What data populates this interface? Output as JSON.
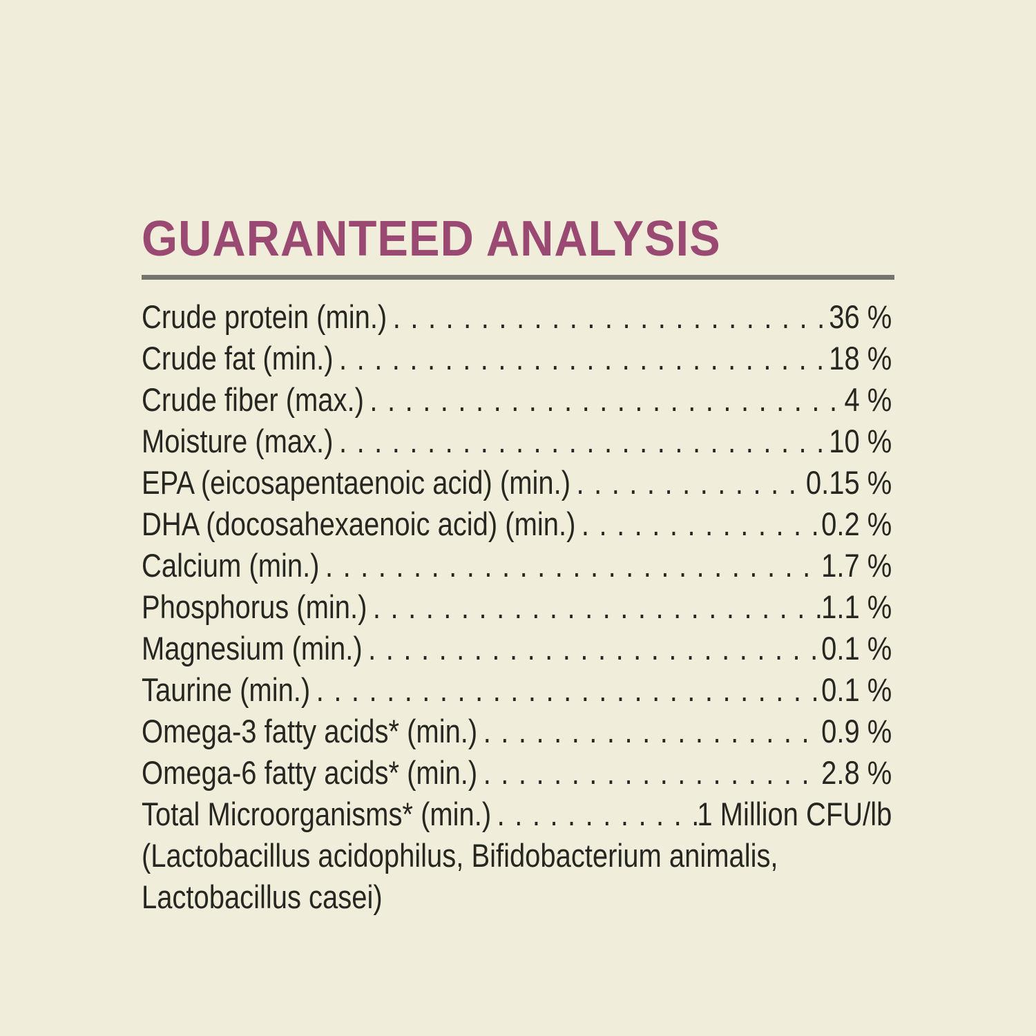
{
  "title": "GUARANTEED ANALYSIS",
  "colors": {
    "background": "#f0edda",
    "title": "#9a4a72",
    "rule": "#75756d",
    "text": "#272621"
  },
  "rows": [
    {
      "label": "Crude protein (min.)",
      "value": "36 %"
    },
    {
      "label": "Crude fat (min.)",
      "value": "18 %"
    },
    {
      "label": "Crude fiber (max.)",
      "value": "4 %"
    },
    {
      "label": "Moisture (max.)",
      "value": "10 %"
    },
    {
      "label": "EPA (eicosapentaenoic acid) (min.)",
      "value": "0.15 %"
    },
    {
      "label": "DHA (docosahexaenoic acid) (min.)",
      "value": "0.2 %"
    },
    {
      "label": "Calcium (min.)",
      "value": "1.7 %"
    },
    {
      "label": "Phosphorus (min.)",
      "value": "1.1 %"
    },
    {
      "label": "Magnesium (min.)",
      "value": "0.1 %"
    },
    {
      "label": "Taurine (min.)",
      "value": "0.1 %"
    },
    {
      "label": "Omega-3 fatty acids* (min.)",
      "value": "0.9 %"
    },
    {
      "label": "Omega-6 fatty acids* (min.)",
      "value": "2.8 %"
    },
    {
      "label": "Total Microorganisms* (min.)",
      "value": "1 Million CFU/lb"
    }
  ],
  "footnote_lines": [
    "(Lactobacillus acidophilus, Bifidobacterium animalis,",
    "Lactobacillus casei)"
  ]
}
